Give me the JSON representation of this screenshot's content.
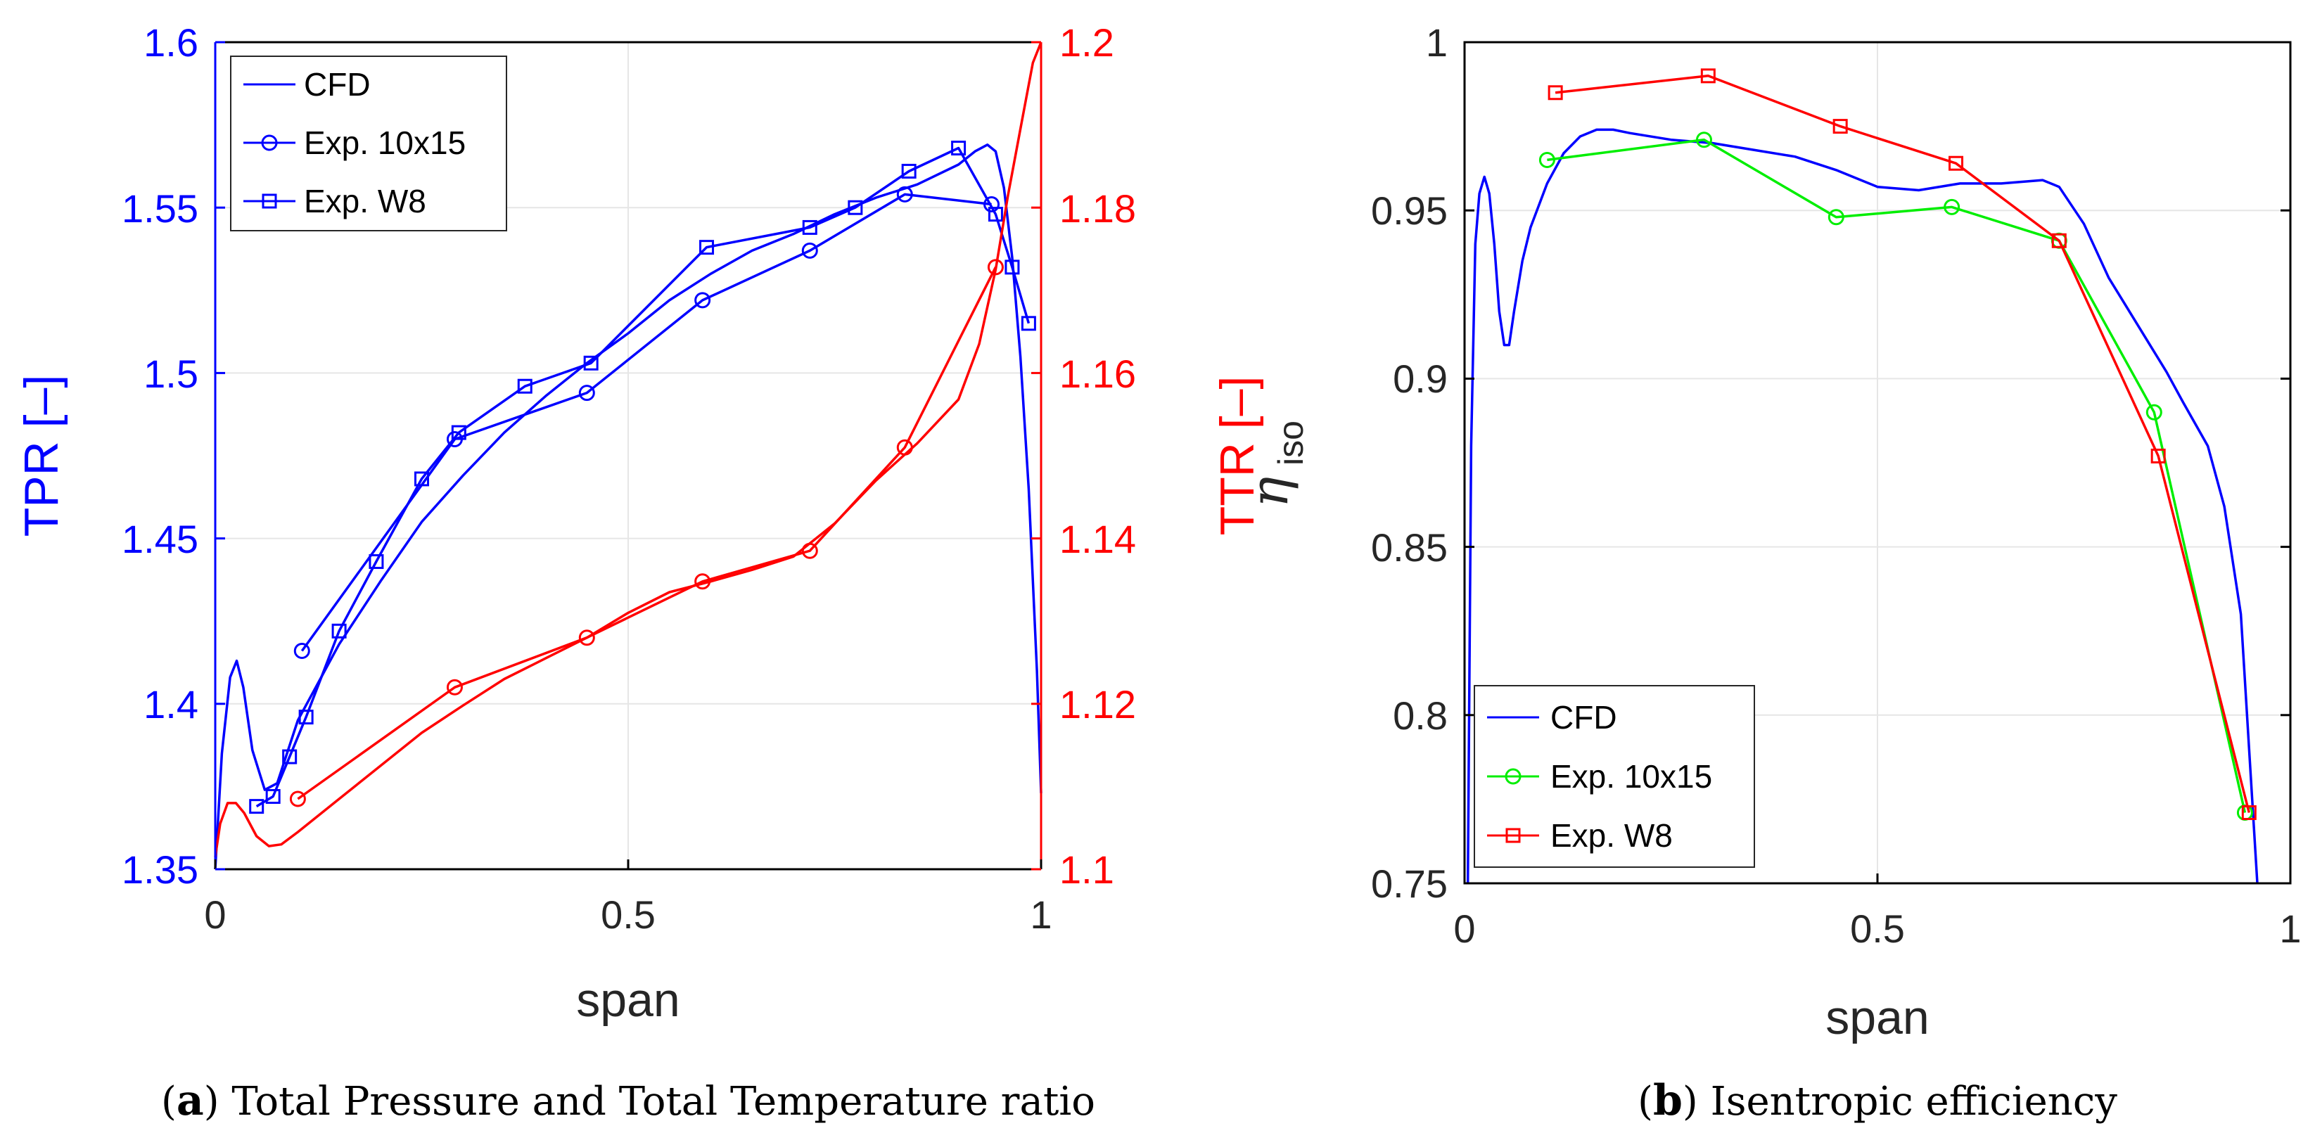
{
  "colors": {
    "blue": "#0000ff",
    "red": "#ff0000",
    "green": "#00ee00",
    "black": "#000000",
    "grid": "#e6e6e6"
  },
  "captions": {
    "a": {
      "tag": "a",
      "text": "Total Pressure and Total Temperature ratio"
    },
    "b": {
      "tag": "b",
      "text": "Isentropic efficiency"
    }
  },
  "chart_data": [
    {
      "id": "a",
      "type": "line",
      "xlabel": "span",
      "ylabel_left": "TPR [–]",
      "ylabel_right": "TTR [–]",
      "xlim": [
        0,
        1
      ],
      "ylim_left": [
        1.35,
        1.6
      ],
      "ylim_right": [
        1.1,
        1.2
      ],
      "xticks": [
        "0",
        "0.5",
        "1"
      ],
      "yticks_left": [
        "1.35",
        "1.4",
        "1.45",
        "1.5",
        "1.55",
        "1.6"
      ],
      "yticks_right": [
        "1.1",
        "1.12",
        "1.14",
        "1.16",
        "1.18",
        "1.2"
      ],
      "legend": [
        "CFD",
        "Exp. 10x15",
        "Exp. W8"
      ],
      "legend_position": "top-left",
      "series": [
        {
          "name": "CFD",
          "axis": "left",
          "color": "blue",
          "marker": "none",
          "x": [
            0.0,
            0.008,
            0.018,
            0.026,
            0.034,
            0.045,
            0.06,
            0.075,
            0.1,
            0.15,
            0.2,
            0.25,
            0.3,
            0.35,
            0.4,
            0.45,
            0.5,
            0.55,
            0.6,
            0.65,
            0.7,
            0.75,
            0.8,
            0.85,
            0.9,
            0.92,
            0.935,
            0.945,
            0.955,
            0.965,
            0.975,
            0.985,
            0.995,
            1.0
          ],
          "y": [
            1.35,
            1.385,
            1.408,
            1.413,
            1.405,
            1.386,
            1.374,
            1.376,
            1.395,
            1.418,
            1.437,
            1.455,
            1.469,
            1.482,
            1.493,
            1.503,
            1.512,
            1.522,
            1.53,
            1.537,
            1.542,
            1.548,
            1.553,
            1.557,
            1.563,
            1.567,
            1.569,
            1.567,
            1.556,
            1.535,
            1.505,
            1.465,
            1.41,
            1.373
          ]
        },
        {
          "name": "Exp. 10x15",
          "axis": "left",
          "color": "blue",
          "marker": "circle",
          "x": [
            0.105,
            0.29,
            0.45,
            0.59,
            0.72,
            0.835,
            0.94
          ],
          "y": [
            1.416,
            1.48,
            1.494,
            1.522,
            1.537,
            1.554,
            1.551
          ]
        },
        {
          "name": "Exp. W8",
          "axis": "left",
          "color": "blue",
          "marker": "square",
          "x": [
            0.05,
            0.07,
            0.09,
            0.11,
            0.15,
            0.195,
            0.25,
            0.295,
            0.375,
            0.455,
            0.595,
            0.72,
            0.775,
            0.84,
            0.9,
            0.945,
            0.965,
            0.985
          ],
          "y": [
            1.369,
            1.372,
            1.384,
            1.396,
            1.422,
            1.443,
            1.468,
            1.482,
            1.496,
            1.503,
            1.538,
            1.544,
            1.55,
            1.561,
            1.568,
            1.548,
            1.532,
            1.515
          ]
        },
        {
          "name": "CFD (TTR)",
          "axis": "right",
          "color": "red",
          "marker": "none",
          "x": [
            0.0,
            0.006,
            0.015,
            0.025,
            0.035,
            0.05,
            0.065,
            0.08,
            0.1,
            0.15,
            0.2,
            0.25,
            0.3,
            0.35,
            0.4,
            0.45,
            0.5,
            0.55,
            0.6,
            0.65,
            0.7,
            0.75,
            0.8,
            0.85,
            0.9,
            0.925,
            0.945,
            0.96,
            0.975,
            0.99,
            1.0
          ],
          "y": [
            1.1015,
            1.1055,
            1.108,
            1.108,
            1.1068,
            1.104,
            1.1028,
            1.103,
            1.1045,
            1.1085,
            1.1125,
            1.1165,
            1.1198,
            1.123,
            1.1255,
            1.128,
            1.131,
            1.1335,
            1.1348,
            1.1362,
            1.1378,
            1.1418,
            1.147,
            1.1515,
            1.1568,
            1.1635,
            1.1725,
            1.1815,
            1.1895,
            1.1975,
            1.2
          ]
        },
        {
          "name": "Exp. 10x15 (TTR)",
          "axis": "right",
          "color": "red",
          "marker": "circle",
          "x": [
            0.1,
            0.29,
            0.45,
            0.59,
            0.72,
            0.835,
            0.945
          ],
          "y": [
            1.1085,
            1.122,
            1.128,
            1.1348,
            1.1385,
            1.151,
            1.1728
          ]
        }
      ]
    },
    {
      "id": "b",
      "type": "line",
      "xlabel": "span",
      "ylabel_main": "η",
      "ylabel_sub": "iso",
      "xlim": [
        0,
        1
      ],
      "ylim": [
        0.75,
        1.0
      ],
      "xticks": [
        "0",
        "0.5",
        "1"
      ],
      "yticks": [
        "0.75",
        "0.8",
        "0.85",
        "0.9",
        "0.95",
        "1"
      ],
      "legend": [
        "CFD",
        "Exp. 10x15",
        "Exp. W8"
      ],
      "legend_position": "bottom-left",
      "series": [
        {
          "name": "CFD",
          "color": "blue",
          "marker": "none",
          "x": [
            0.004,
            0.008,
            0.013,
            0.018,
            0.024,
            0.03,
            0.036,
            0.042,
            0.048,
            0.054,
            0.06,
            0.07,
            0.08,
            0.1,
            0.12,
            0.14,
            0.16,
            0.18,
            0.2,
            0.25,
            0.3,
            0.35,
            0.4,
            0.45,
            0.5,
            0.55,
            0.6,
            0.65,
            0.7,
            0.72,
            0.75,
            0.78,
            0.8,
            0.85,
            0.87,
            0.9,
            0.92,
            0.94,
            0.95,
            0.96
          ],
          "y": [
            0.75,
            0.88,
            0.94,
            0.955,
            0.96,
            0.955,
            0.94,
            0.92,
            0.91,
            0.91,
            0.92,
            0.935,
            0.945,
            0.958,
            0.967,
            0.972,
            0.974,
            0.974,
            0.973,
            0.971,
            0.97,
            0.968,
            0.966,
            0.962,
            0.957,
            0.956,
            0.958,
            0.958,
            0.959,
            0.957,
            0.946,
            0.93,
            0.922,
            0.902,
            0.893,
            0.88,
            0.862,
            0.83,
            0.79,
            0.75
          ]
        },
        {
          "name": "Exp. 10x15",
          "color": "green",
          "marker": "circle",
          "x": [
            0.1,
            0.29,
            0.45,
            0.59,
            0.72,
            0.835,
            0.945
          ],
          "y": [
            0.965,
            0.971,
            0.948,
            0.951,
            0.941,
            0.89,
            0.771
          ]
        },
        {
          "name": "Exp. W8",
          "color": "red",
          "marker": "square",
          "x": [
            0.11,
            0.295,
            0.455,
            0.595,
            0.72,
            0.84,
            0.95
          ],
          "y": [
            0.985,
            0.99,
            0.975,
            0.964,
            0.941,
            0.877,
            0.771
          ]
        }
      ]
    }
  ]
}
